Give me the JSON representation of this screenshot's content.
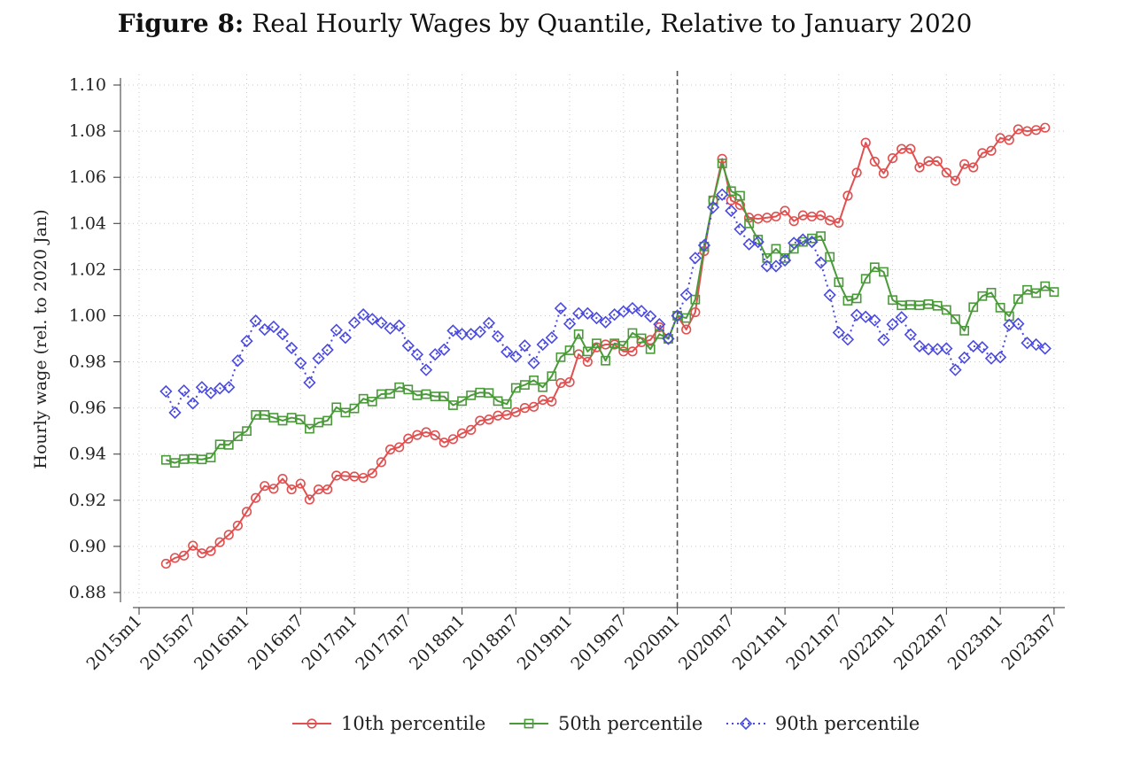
{
  "figure_label": "Figure 8:",
  "figure_title": "Real Hourly Wages by Quantile, Relative to January 2020",
  "chart_data": {
    "type": "line",
    "title": "Real Hourly Wages by Quantile, Relative to January 2020",
    "xlabel": "",
    "ylabel": "Hourly wage (rel. to 2020 Jan)",
    "ylim": [
      0.88,
      1.1
    ],
    "yticks": [
      0.88,
      0.9,
      0.92,
      0.94,
      0.96,
      0.98,
      1.0,
      1.02,
      1.04,
      1.06,
      1.08,
      1.1
    ],
    "ytick_labels": [
      "0.88",
      "0.90",
      "0.92",
      "0.94",
      "0.96",
      "0.98",
      "1.00",
      "1.02",
      "1.04",
      "1.06",
      "1.08",
      "1.10"
    ],
    "x_start": "2015m1",
    "xtick_labels": [
      "2015m1",
      "2015m7",
      "2016m1",
      "2016m7",
      "2017m1",
      "2017m7",
      "2018m1",
      "2018m7",
      "2019m1",
      "2019m7",
      "2020m1",
      "2020m7",
      "2021m1",
      "2021m7",
      "2022m1",
      "2022m7",
      "2023m1",
      "2023m7"
    ],
    "xtick_months": [
      0,
      6,
      12,
      18,
      24,
      30,
      36,
      42,
      48,
      54,
      60,
      66,
      72,
      78,
      84,
      90,
      96,
      102
    ],
    "vline_month": 60,
    "vline_label": "2020m1",
    "grid": true,
    "legend_position": "bottom",
    "first_month_index": 3,
    "series": [
      {
        "name": "10th percentile",
        "color": "#e05050",
        "marker": "circle",
        "dash": "solid",
        "values": [
          0.8925,
          0.895,
          0.896,
          0.9003,
          0.897,
          0.898,
          0.9018,
          0.905,
          0.909,
          0.915,
          0.921,
          0.9262,
          0.925,
          0.9293,
          0.9247,
          0.9272,
          0.9203,
          0.9247,
          0.9247,
          0.9307,
          0.9305,
          0.9303,
          0.9297,
          0.9317,
          0.9365,
          0.942,
          0.943,
          0.9467,
          0.9483,
          0.9495,
          0.9482,
          0.945,
          0.9465,
          0.949,
          0.9505,
          0.9545,
          0.955,
          0.9567,
          0.957,
          0.9582,
          0.96,
          0.9605,
          0.9635,
          0.9628,
          0.9708,
          0.9712,
          0.9833,
          0.98,
          0.9863,
          0.9875,
          0.9875,
          0.9845,
          0.9845,
          0.9885,
          0.9895,
          0.995,
          0.99,
          1.0,
          0.994,
          1.0015,
          1.028,
          1.05,
          1.068,
          1.05,
          1.048,
          1.0425,
          1.042,
          1.0425,
          1.043,
          1.0455,
          1.041,
          1.0435,
          1.043,
          1.0435,
          1.0413,
          1.0403,
          1.052,
          1.062,
          1.075,
          1.0668,
          1.0617,
          1.0683,
          1.0723,
          1.0723,
          1.0643,
          1.067,
          1.067,
          1.062,
          1.0585,
          1.0657,
          1.0643,
          1.0705,
          1.0715,
          1.077,
          1.0762,
          1.0808,
          1.08,
          1.0805,
          1.0815
        ]
      },
      {
        "name": "50th percentile",
        "color": "#4a9a3a",
        "marker": "square",
        "dash": "solid",
        "values": [
          0.9375,
          0.9362,
          0.9378,
          0.938,
          0.9377,
          0.9385,
          0.9442,
          0.944,
          0.9477,
          0.95,
          0.957,
          0.957,
          0.9558,
          0.9545,
          0.9558,
          0.955,
          0.951,
          0.9537,
          0.9545,
          0.9603,
          0.958,
          0.9598,
          0.964,
          0.9628,
          0.966,
          0.9662,
          0.969,
          0.968,
          0.9655,
          0.966,
          0.965,
          0.965,
          0.9612,
          0.963,
          0.9655,
          0.9667,
          0.9665,
          0.963,
          0.9617,
          0.9687,
          0.97,
          0.972,
          0.969,
          0.9738,
          0.982,
          0.985,
          0.992,
          0.9845,
          0.988,
          0.9805,
          0.988,
          0.987,
          0.9925,
          0.9902,
          0.9855,
          0.992,
          0.99,
          1.0,
          0.999,
          1.007,
          1.03,
          1.05,
          1.066,
          1.054,
          1.052,
          1.04,
          1.033,
          1.025,
          1.029,
          1.025,
          1.029,
          1.032,
          1.0335,
          1.0345,
          1.0255,
          1.0145,
          1.0065,
          1.0075,
          1.016,
          1.021,
          1.019,
          1.0068,
          1.0045,
          1.0047,
          1.0045,
          1.005,
          1.0043,
          1.0025,
          0.9985,
          0.9935,
          1.0037,
          1.0085,
          1.01,
          1.0035,
          0.9998,
          1.0072,
          1.0112,
          1.0098,
          1.0128,
          1.0103
        ]
      },
      {
        "name": "90th percentile",
        "color": "#4a4ae0",
        "marker": "diamond",
        "dash": "dotted",
        "values": [
          0.9672,
          0.958,
          0.9675,
          0.962,
          0.969,
          0.9665,
          0.9685,
          0.969,
          0.9805,
          0.989,
          0.9978,
          0.994,
          0.9952,
          0.992,
          0.986,
          0.9795,
          0.971,
          0.9815,
          0.9852,
          0.9938,
          0.9905,
          0.997,
          1.0005,
          0.9985,
          0.997,
          0.9945,
          0.9957,
          0.987,
          0.9832,
          0.9765,
          0.9832,
          0.9853,
          0.9935,
          0.992,
          0.992,
          0.993,
          0.9968,
          0.991,
          0.9843,
          0.9823,
          0.987,
          0.9795,
          0.9875,
          0.9905,
          1.0032,
          0.9965,
          1.001,
          1.001,
          0.999,
          0.9972,
          1.0005,
          1.0018,
          1.0032,
          1.002,
          0.9997,
          0.9963,
          0.99,
          1.0,
          1.009,
          1.025,
          1.0305,
          1.047,
          1.0525,
          1.0455,
          1.0375,
          1.031,
          1.032,
          1.0215,
          1.0215,
          1.024,
          1.0315,
          1.033,
          1.032,
          1.023,
          1.009,
          0.9927,
          0.9897,
          1.0003,
          0.9995,
          0.998,
          0.9895,
          0.9963,
          0.9993,
          0.9918,
          0.9868,
          0.9855,
          0.9855,
          0.9858,
          0.9765,
          0.9818,
          0.9868,
          0.9863,
          0.9815,
          0.982,
          0.996,
          0.9965,
          0.9882,
          0.9875,
          0.9858
        ]
      }
    ]
  }
}
